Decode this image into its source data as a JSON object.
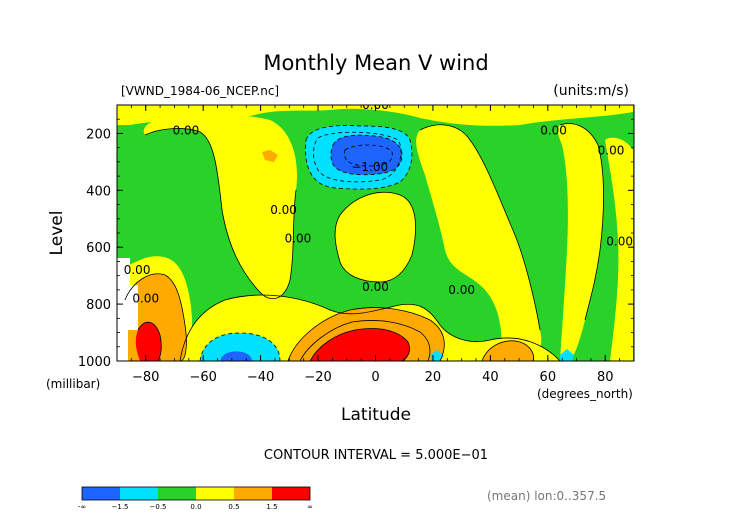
{
  "chart_data": {
    "type": "contour",
    "title": "Monthly Mean V wind",
    "dataset_label": "[VWND_1984-06_NCEP.nc]",
    "units_label": "(units:m/s)",
    "xlabel": "Latitude",
    "x_units": "(degrees_north)",
    "ylabel": "Level",
    "y_units": "(millibar)",
    "xlim": [
      -90,
      90
    ],
    "ylim": [
      1000,
      100
    ],
    "x_ticks": [
      -80,
      -60,
      -40,
      -20,
      0,
      20,
      40,
      60,
      80
    ],
    "x_tick_labels": [
      "−80",
      "−60",
      "−40",
      "−20",
      "0",
      "20",
      "40",
      "60",
      "80"
    ],
    "y_ticks": [
      200,
      400,
      600,
      800,
      1000
    ],
    "y_tick_labels": [
      "200",
      "400",
      "600",
      "800",
      "1000"
    ],
    "contour_interval_text": "CONTOUR INTERVAL = 5.000E−01",
    "averaging_note": "(mean) lon:0..357.5",
    "contour_labels": [
      {
        "text": "0.00",
        "x": 0,
        "y": 100
      },
      {
        "text": "0.00",
        "x": -66,
        "y": 190
      },
      {
        "text": "−1.00",
        "x": -2,
        "y": 318
      },
      {
        "text": "0.00",
        "x": 62,
        "y": 190
      },
      {
        "text": "0.00",
        "x": 82,
        "y": 260
      },
      {
        "text": "0.00",
        "x": -32,
        "y": 470
      },
      {
        "text": "0.00",
        "x": -27,
        "y": 570
      },
      {
        "text": "0.00",
        "x": 85,
        "y": 580
      },
      {
        "text": "0.00",
        "x": -83,
        "y": 680
      },
      {
        "text": "0.00",
        "x": -80,
        "y": 780
      },
      {
        "text": "0.00",
        "x": 30,
        "y": 750
      },
      {
        "text": "0.00",
        "x": 0,
        "y": 740
      }
    ],
    "legend": {
      "bins": [
        {
          "range": [
            "-∞",
            -1.5
          ],
          "color": "#1e64ff"
        },
        {
          "range": [
            -1.5,
            -0.5
          ],
          "color": "#00e1ff"
        },
        {
          "range": [
            -0.5,
            0.0
          ],
          "color": "#28d228"
        },
        {
          "range": [
            0.0,
            0.5
          ],
          "color": "#ffff00"
        },
        {
          "range": [
            0.5,
            1.5
          ],
          "color": "#ffaa00"
        },
        {
          "range": [
            1.5,
            "∞"
          ],
          "color": "#ff0000"
        }
      ],
      "tick_labels": [
        "-∞",
        "−1.5",
        "−0.5",
        "0.0",
        "0.5",
        "1.5",
        "∞"
      ]
    },
    "regions": [
      {
        "level": "very_positive",
        "color": "#ff0000",
        "desc": "near-surface red maxima around -85 and -20..10"
      },
      {
        "level": "strong_negative",
        "color": "#1e64ff",
        "desc": "upper-level minimum near 0 latitude, 150-250 mb"
      }
    ]
  }
}
